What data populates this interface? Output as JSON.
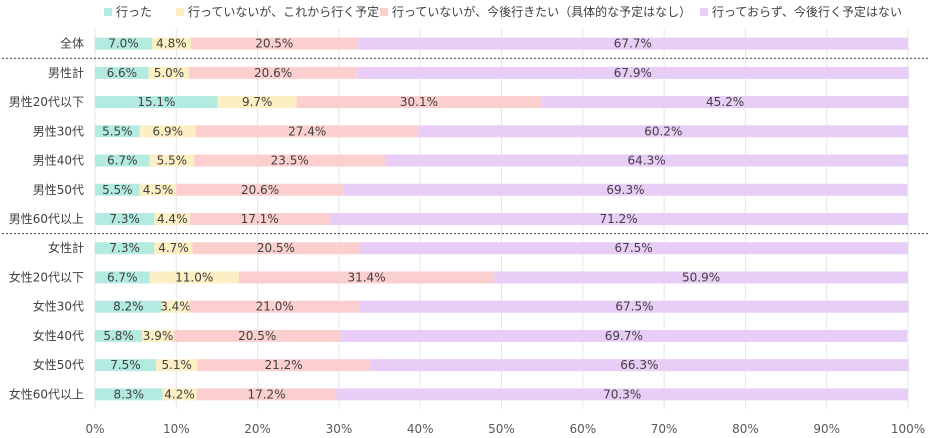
{
  "chart_data": {
    "type": "bar",
    "orientation": "horizontal",
    "stacked": true,
    "categories": [
      "全体",
      "男性計",
      "男性20代以下",
      "男性30代",
      "男性40代",
      "男性50代",
      "男性60代以上",
      "女性計",
      "女性20代以下",
      "女性30代",
      "女性40代",
      "女性50代",
      "女性60代以上"
    ],
    "series": [
      {
        "name": "行った",
        "color": "#b3ebe0",
        "values": [
          7.0,
          6.6,
          15.1,
          5.5,
          6.7,
          5.5,
          7.3,
          7.3,
          6.7,
          8.2,
          5.8,
          7.5,
          8.3
        ]
      },
      {
        "name": "行っていないが、これから行く予定",
        "color": "#fdefc4",
        "values": [
          4.8,
          5.0,
          9.7,
          6.9,
          5.5,
          4.5,
          4.4,
          4.7,
          11.0,
          3.4,
          3.9,
          5.1,
          4.2
        ]
      },
      {
        "name": "行っていないが、今後行きたい（具体的な予定はなし）",
        "color": "#fccfcf",
        "values": [
          20.5,
          20.6,
          30.1,
          27.4,
          23.5,
          20.6,
          17.1,
          20.5,
          31.4,
          21.0,
          20.5,
          21.2,
          17.2
        ]
      },
      {
        "name": "行っておらず、今後行く予定はない",
        "color": "#e8cdf7",
        "values": [
          67.7,
          67.9,
          45.2,
          60.2,
          64.3,
          69.3,
          71.2,
          67.5,
          50.9,
          67.5,
          69.7,
          66.3,
          70.3
        ]
      }
    ],
    "value_format": "{v}%",
    "x_ticks": [
      "0%",
      "10%",
      "20%",
      "30%",
      "40%",
      "50%",
      "60%",
      "70%",
      "80%",
      "90%",
      "100%"
    ],
    "xlim": [
      0,
      100
    ],
    "grid": true,
    "legend": "top",
    "separators_after": [
      "全体",
      "男性60代以上"
    ]
  }
}
